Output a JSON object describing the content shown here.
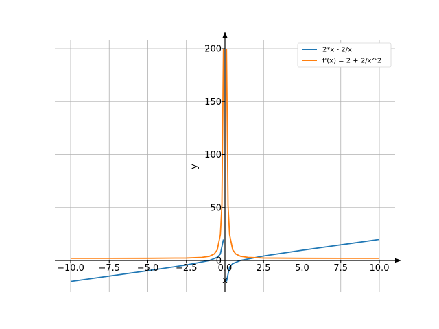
{
  "chart_data": {
    "type": "line",
    "title": "",
    "xlabel": "x",
    "ylabel": "y",
    "xlim": [
      -10.0,
      10.0
    ],
    "ylim": [
      -30,
      200
    ],
    "grid": true,
    "legend_position": "top-right",
    "x_ticks": [
      "−10.0",
      "−7.5",
      "−5.0",
      "−2.5",
      "0.0",
      "2.5",
      "5.0",
      "7.5",
      "10.0"
    ],
    "y_ticks": [
      "0",
      "50",
      "100",
      "150",
      "200"
    ],
    "series": [
      {
        "name": "2*x - 2/x",
        "color": "#1f77b4",
        "x": [
          -10.0,
          -7.5,
          -5.0,
          -2.5,
          -1.0,
          -0.5,
          -0.3,
          -0.1,
          0.1,
          0.3,
          0.5,
          1.0,
          2.5,
          5.0,
          7.5,
          10.0
        ],
        "y": [
          -19.8,
          -14.73,
          -9.6,
          -4.2,
          0.0,
          3.0,
          6.07,
          19.8,
          -19.8,
          -6.07,
          -3.0,
          0.0,
          4.2,
          9.6,
          14.73,
          19.8
        ]
      },
      {
        "name": "f'(x) = 2 + 2/x^2",
        "color": "#ff7f0e",
        "x": [
          -10.0,
          -7.5,
          -5.0,
          -2.5,
          -1.5,
          -1.0,
          -0.7,
          -0.5,
          -0.3,
          -0.2,
          -0.1,
          0.1,
          0.2,
          0.3,
          0.5,
          0.7,
          1.0,
          1.5,
          2.5,
          5.0,
          7.5,
          10.0
        ],
        "y": [
          2.02,
          2.04,
          2.08,
          2.32,
          2.89,
          4.0,
          6.08,
          10.0,
          24.2,
          52.0,
          200.0,
          200.0,
          52.0,
          24.2,
          10.0,
          6.08,
          4.0,
          2.89,
          2.32,
          2.08,
          2.04,
          2.02
        ]
      }
    ]
  }
}
